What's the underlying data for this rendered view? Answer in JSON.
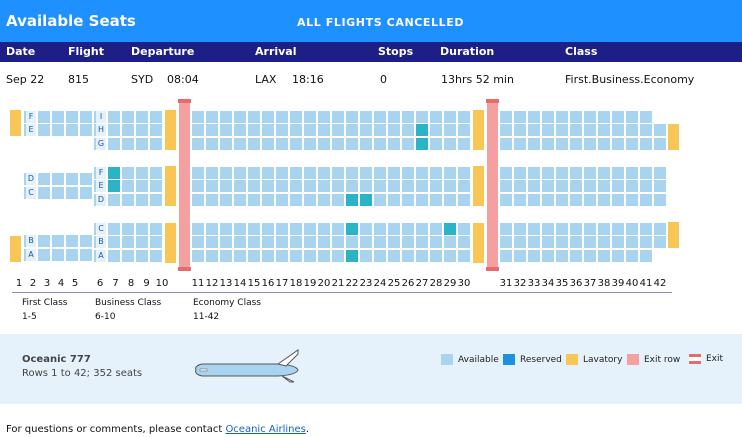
{
  "header": {
    "title": "Available Seats",
    "notice": "ALL FLIGHTS CANCELLED"
  },
  "columns": [
    "Date",
    "Flight",
    "Departure",
    "Arrival",
    "Stops",
    "Duration",
    "Class"
  ],
  "flight": {
    "date": "Sep 22",
    "flight": "815",
    "dep_airport": "SYD",
    "dep_time": "08:04",
    "arr_airport": "LAX",
    "arr_time": "18:16",
    "stops": "0",
    "duration": "13hrs 52 min",
    "class": "First.Business.Economy"
  },
  "seatmap": {
    "rows": [
      "1",
      "2",
      "3",
      "4",
      "5",
      "6",
      "7",
      "8",
      "9",
      "10",
      "11",
      "12",
      "13",
      "14",
      "15",
      "16",
      "17",
      "18",
      "19",
      "20",
      "21",
      "22",
      "23",
      "24",
      "25",
      "26",
      "27",
      "28",
      "29",
      "30",
      "31",
      "32",
      "33",
      "34",
      "35",
      "36",
      "37",
      "38",
      "39",
      "40",
      "41",
      "42"
    ],
    "first_letters": [
      "F",
      "E",
      "D",
      "C",
      "B",
      "A"
    ],
    "business_letters": [
      "I",
      "H",
      "G",
      "F",
      "E",
      "D",
      "C",
      "B",
      "A"
    ],
    "reserved": [
      "27H",
      "27G",
      "7F",
      "7E",
      "22D",
      "23D",
      "22C",
      "29C",
      "22A"
    ]
  },
  "classes": [
    {
      "name": "First Class",
      "range": "1-5"
    },
    {
      "name": "Business Class",
      "range": "6-10"
    },
    {
      "name": "Economy Class",
      "range": "11-42"
    }
  ],
  "aircraft": {
    "name": "Oceanic 777",
    "description": "Rows 1 to 42; 352 seats"
  },
  "legend": [
    {
      "label": "Available",
      "color": "#a8d4f0"
    },
    {
      "label": "Reserved",
      "color": "#1e90e0"
    },
    {
      "label": "Lavatory",
      "color": "#f7c654"
    },
    {
      "label": "Exit row",
      "color": "#f4a0a0"
    },
    {
      "label": "Exit",
      "color": "#e86b6b"
    }
  ],
  "contact": {
    "text": "For questions or comments, please contact",
    "link": "Oceanic Airlines"
  }
}
